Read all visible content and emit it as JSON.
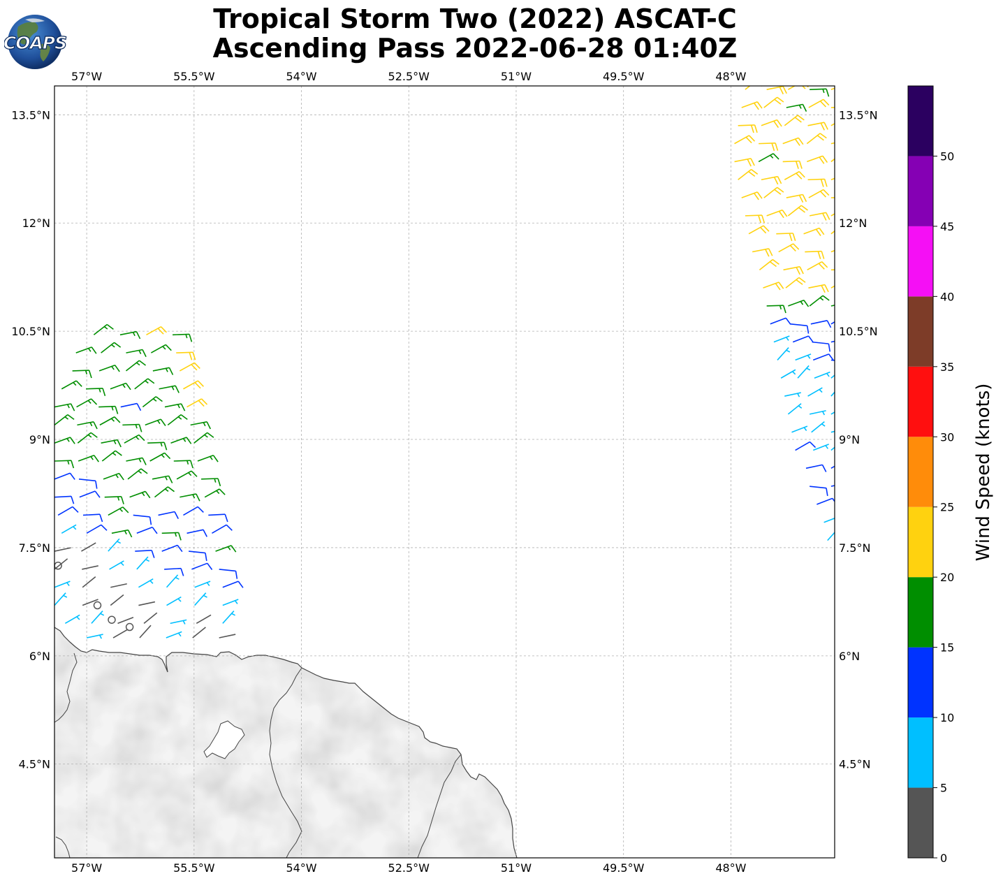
{
  "header": {
    "logo_text": "COAPS",
    "title_line1": "Tropical Storm Two (2022) ASCAT-C",
    "title_line2": "Ascending Pass 2022-06-28 01:40Z"
  },
  "map": {
    "lon_ticks": [
      "57°W",
      "55.5°W",
      "54°W",
      "52.5°W",
      "51°W",
      "49.5°W",
      "48°W"
    ],
    "lat_ticks": [
      "13.5°N",
      "12°N",
      "10.5°N",
      "9°N",
      "7.5°N",
      "6°N",
      "4.5°N"
    ],
    "lon_range_deg_w": [
      57.45,
      46.55
    ],
    "lat_range_deg_n": [
      3.2,
      13.9
    ],
    "gridlines": true,
    "land_color": "#f4f4f4",
    "coast_color": "#444444"
  },
  "colorbar": {
    "label": "Wind Speed (knots)",
    "ticks": [
      "0",
      "5",
      "10",
      "15",
      "20",
      "25",
      "30",
      "35",
      "40",
      "45",
      "50"
    ],
    "colors": [
      "#555555",
      "#00bfff",
      "#0033ff",
      "#008e00",
      "#ffd20f",
      "#ff8c0a",
      "#ff0f0f",
      "#7d3c28",
      "#f50ff5",
      "#8500b4",
      "#2b0060"
    ]
  },
  "chart_data": {
    "type": "wind-barbs",
    "title": "Tropical Storm Two (2022) ASCAT-C Ascending Pass 2022-06-28 01:40Z",
    "value_label": "Wind Speed (knots)",
    "speed_bins_kt": [
      0,
      5,
      10,
      15,
      20,
      25,
      30,
      35,
      40,
      45,
      50
    ],
    "swaths": [
      {
        "name": "west",
        "rows": [
          {
            "lat": 10.45,
            "lon_start": 56.9,
            "lon_end": 55.8,
            "speeds": [
              17,
              17,
              22,
              17
            ]
          },
          {
            "lat": 10.2,
            "lon_start": 57.15,
            "lon_end": 55.75,
            "speeds": [
              17,
              17,
              17,
              17,
              22
            ]
          },
          {
            "lat": 9.95,
            "lon_start": 57.2,
            "lon_end": 55.7,
            "speeds": [
              17,
              17,
              17,
              17,
              22
            ]
          },
          {
            "lat": 9.7,
            "lon_start": 57.35,
            "lon_end": 55.65,
            "speeds": [
              17,
              17,
              17,
              17,
              17,
              22
            ]
          },
          {
            "lat": 9.45,
            "lon_start": 57.45,
            "lon_end": 55.6,
            "speeds": [
              17,
              17,
              17,
              12,
              17,
              17,
              22
            ]
          },
          {
            "lat": 9.2,
            "lon_start": 57.45,
            "lon_end": 55.55,
            "speeds": [
              17,
              17,
              17,
              17,
              17,
              17,
              17
            ]
          },
          {
            "lat": 8.95,
            "lon_start": 57.45,
            "lon_end": 55.5,
            "speeds": [
              17,
              17,
              17,
              17,
              17,
              17,
              17
            ]
          },
          {
            "lat": 8.7,
            "lon_start": 57.45,
            "lon_end": 55.45,
            "speeds": [
              17,
              17,
              17,
              17,
              17,
              17,
              17
            ]
          },
          {
            "lat": 8.45,
            "lon_start": 57.45,
            "lon_end": 55.4,
            "speeds": [
              12,
              12,
              17,
              17,
              17,
              17,
              17
            ]
          },
          {
            "lat": 8.2,
            "lon_start": 57.45,
            "lon_end": 55.35,
            "speeds": [
              12,
              12,
              17,
              17,
              17,
              17,
              17
            ]
          },
          {
            "lat": 7.95,
            "lon_start": 57.4,
            "lon_end": 55.3,
            "speeds": [
              12,
              12,
              17,
              12,
              12,
              12,
              12
            ]
          },
          {
            "lat": 7.7,
            "lon_start": 57.35,
            "lon_end": 55.25,
            "speeds": [
              7,
              12,
              17,
              12,
              17,
              12,
              12
            ]
          },
          {
            "lat": 7.45,
            "lon_start": 57.45,
            "lon_end": 55.2,
            "speeds": [
              3,
              3,
              7,
              12,
              12,
              12,
              17
            ]
          },
          {
            "lat": 7.2,
            "lon_start": 57.45,
            "lon_end": 55.15,
            "speeds": [
              3,
              3,
              7,
              7,
              12,
              12,
              12
            ]
          },
          {
            "lat": 6.95,
            "lon_start": 57.45,
            "lon_end": 55.1,
            "speeds": [
              7,
              3,
              3,
              7,
              7,
              7,
              12
            ]
          },
          {
            "lat": 6.7,
            "lon_start": 57.45,
            "lon_end": 55.1,
            "speeds": [
              7,
              3,
              3,
              3,
              7,
              7,
              7
            ]
          },
          {
            "lat": 6.45,
            "lon_start": 57.3,
            "lon_end": 55.1,
            "speeds": [
              7,
              7,
              3,
              3,
              7,
              3,
              7
            ]
          },
          {
            "lat": 6.25,
            "lon_start": 57.0,
            "lon_end": 55.15,
            "speeds": [
              7,
              3,
              3,
              7,
              3,
              3
            ]
          }
        ],
        "calm_points": [
          {
            "lat": 7.25,
            "lon": 57.4
          },
          {
            "lat": 6.7,
            "lon": 56.85
          },
          {
            "lat": 6.5,
            "lon": 56.65
          },
          {
            "lat": 6.4,
            "lon": 56.4
          }
        ]
      },
      {
        "name": "east",
        "rows": [
          {
            "lat": 13.85,
            "lon_start": 47.8,
            "lon_end": 46.6,
            "speeds": [
              22,
              22,
              22,
              17,
              22
            ]
          },
          {
            "lat": 13.6,
            "lon_start": 47.85,
            "lon_end": 46.6,
            "speeds": [
              22,
              22,
              17,
              22,
              22
            ]
          },
          {
            "lat": 13.35,
            "lon_start": 47.9,
            "lon_end": 46.6,
            "speeds": [
              22,
              22,
              22,
              22,
              22
            ]
          },
          {
            "lat": 13.1,
            "lon_start": 47.95,
            "lon_end": 46.6,
            "speeds": [
              22,
              22,
              22,
              22,
              22
            ]
          },
          {
            "lat": 12.85,
            "lon_start": 47.95,
            "lon_end": 46.6,
            "speeds": [
              22,
              17,
              22,
              22,
              22
            ]
          },
          {
            "lat": 12.6,
            "lon_start": 47.9,
            "lon_end": 46.6,
            "speeds": [
              22,
              22,
              22,
              22,
              22
            ]
          },
          {
            "lat": 12.35,
            "lon_start": 47.85,
            "lon_end": 46.6,
            "speeds": [
              22,
              22,
              22,
              22,
              22
            ]
          },
          {
            "lat": 12.1,
            "lon_start": 47.8,
            "lon_end": 46.6,
            "speeds": [
              22,
              22,
              22,
              22,
              22
            ]
          },
          {
            "lat": 11.85,
            "lon_start": 47.75,
            "lon_end": 46.6,
            "speeds": [
              22,
              22,
              22,
              22
            ]
          },
          {
            "lat": 11.6,
            "lon_start": 47.7,
            "lon_end": 46.6,
            "speeds": [
              22,
              22,
              22,
              22
            ]
          },
          {
            "lat": 11.35,
            "lon_start": 47.6,
            "lon_end": 46.6,
            "speeds": [
              22,
              22,
              22,
              22
            ]
          },
          {
            "lat": 11.1,
            "lon_start": 47.55,
            "lon_end": 46.6,
            "speeds": [
              22,
              22,
              22,
              22
            ]
          },
          {
            "lat": 10.85,
            "lon_start": 47.5,
            "lon_end": 46.6,
            "speeds": [
              17,
              17,
              17,
              17
            ]
          },
          {
            "lat": 10.6,
            "lon_start": 47.45,
            "lon_end": 46.6,
            "speeds": [
              12,
              12,
              12,
              12
            ]
          },
          {
            "lat": 10.35,
            "lon_start": 47.4,
            "lon_end": 46.6,
            "speeds": [
              7,
              12,
              12,
              12
            ]
          },
          {
            "lat": 10.1,
            "lon_start": 47.35,
            "lon_end": 46.6,
            "speeds": [
              7,
              7,
              12,
              12
            ]
          },
          {
            "lat": 9.85,
            "lon_start": 47.3,
            "lon_end": 46.6,
            "speeds": [
              7,
              7,
              7,
              7
            ]
          },
          {
            "lat": 9.6,
            "lon_start": 47.25,
            "lon_end": 46.6,
            "speeds": [
              7,
              7,
              7
            ]
          },
          {
            "lat": 9.35,
            "lon_start": 47.2,
            "lon_end": 46.6,
            "speeds": [
              7,
              7,
              7
            ]
          },
          {
            "lat": 9.1,
            "lon_start": 47.15,
            "lon_end": 46.6,
            "speeds": [
              7,
              7,
              7
            ]
          },
          {
            "lat": 8.85,
            "lon_start": 47.1,
            "lon_end": 46.6,
            "speeds": [
              12,
              7,
              7
            ]
          },
          {
            "lat": 8.6,
            "lon_start": 46.95,
            "lon_end": 46.6,
            "speeds": [
              12,
              12
            ]
          },
          {
            "lat": 8.35,
            "lon_start": 46.9,
            "lon_end": 46.6,
            "speeds": [
              12,
              12
            ]
          },
          {
            "lat": 8.1,
            "lon_start": 46.8,
            "lon_end": 46.6,
            "speeds": [
              12
            ]
          },
          {
            "lat": 7.85,
            "lon_start": 46.7,
            "lon_end": 46.6,
            "speeds": [
              7
            ]
          },
          {
            "lat": 7.6,
            "lon_start": 46.65,
            "lon_end": 46.6,
            "speeds": [
              7
            ]
          }
        ],
        "calm_points": []
      }
    ]
  }
}
